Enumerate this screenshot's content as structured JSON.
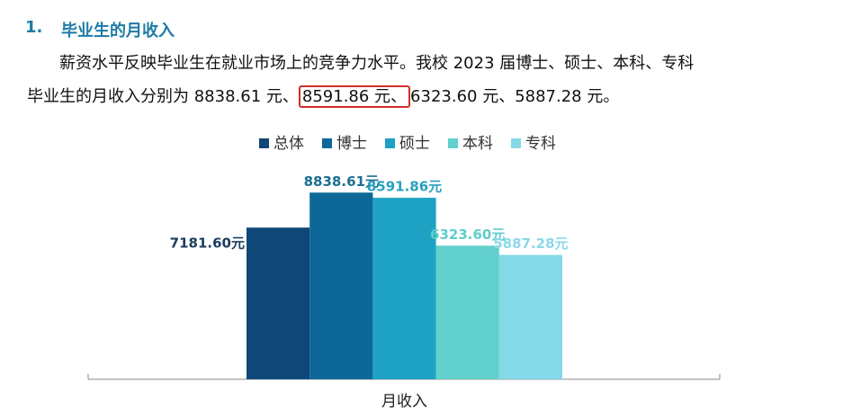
{
  "heading": {
    "number": "1.",
    "title": "毕业生的月收入"
  },
  "paragraph": {
    "line1": "薪资水平反映毕业生在就业市场上的竞争力水平。我校 2023 届博士、硕士、本科、专科",
    "line2_start": "毕业生的月收入分别为 8838.61 元、",
    "highlight": "8591.86 元、",
    "line2_end": "6323.60 元、5887.28 元。"
  },
  "chart_data": {
    "type": "bar",
    "categories": [
      "月收入"
    ],
    "ylim": [
      0,
      10000
    ],
    "series": [
      {
        "name": "总体",
        "color": "#0f4778",
        "label_color": "#1c3d5e",
        "values": [
          7181.6
        ],
        "value_labels": [
          "7181.60元"
        ]
      },
      {
        "name": "博士",
        "color": "#0d6898",
        "label_color": "#1d6f90",
        "values": [
          8838.61
        ],
        "value_labels": [
          "8838.61元"
        ]
      },
      {
        "name": "硕士",
        "color": "#1ea2c3",
        "label_color": "#2a9fc0",
        "values": [
          8591.86
        ],
        "value_labels": [
          "8591.86元"
        ]
      },
      {
        "name": "本科",
        "color": "#62d0cc",
        "label_color": "#5ecdca",
        "values": [
          6323.6
        ],
        "value_labels": [
          "6323.60元"
        ]
      },
      {
        "name": "专科",
        "color": "#84d8e8",
        "label_color": "#8ad8ea",
        "values": [
          5887.28
        ],
        "value_labels": [
          "5887.28元"
        ]
      }
    ]
  }
}
